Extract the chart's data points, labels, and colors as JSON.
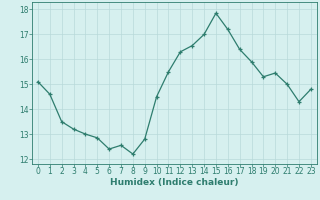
{
  "x": [
    0,
    1,
    2,
    3,
    4,
    5,
    6,
    7,
    8,
    9,
    10,
    11,
    12,
    13,
    14,
    15,
    16,
    17,
    18,
    19,
    20,
    21,
    22,
    23
  ],
  "y": [
    15.1,
    14.6,
    13.5,
    13.2,
    13.0,
    12.85,
    12.4,
    12.55,
    12.2,
    12.8,
    14.5,
    15.5,
    16.3,
    16.55,
    17.0,
    17.85,
    17.2,
    16.4,
    15.9,
    15.3,
    15.45,
    15.0,
    14.3,
    14.8
  ],
  "xlabel": "Humidex (Indice chaleur)",
  "ylabel": "",
  "xlim": [
    -0.5,
    23.5
  ],
  "ylim": [
    11.8,
    18.3
  ],
  "yticks": [
    12,
    13,
    14,
    15,
    16,
    17,
    18
  ],
  "xticks": [
    0,
    1,
    2,
    3,
    4,
    5,
    6,
    7,
    8,
    9,
    10,
    11,
    12,
    13,
    14,
    15,
    16,
    17,
    18,
    19,
    20,
    21,
    22,
    23
  ],
  "line_color": "#2e7d6e",
  "marker": "+",
  "bg_color": "#d6f0ef",
  "grid_color": "#b8dada",
  "spine_color": "#2e7d6e",
  "tick_color": "#2e7d6e",
  "label_color": "#2e7d6e",
  "font_size_axis": 6.5,
  "font_size_ticks": 5.5
}
